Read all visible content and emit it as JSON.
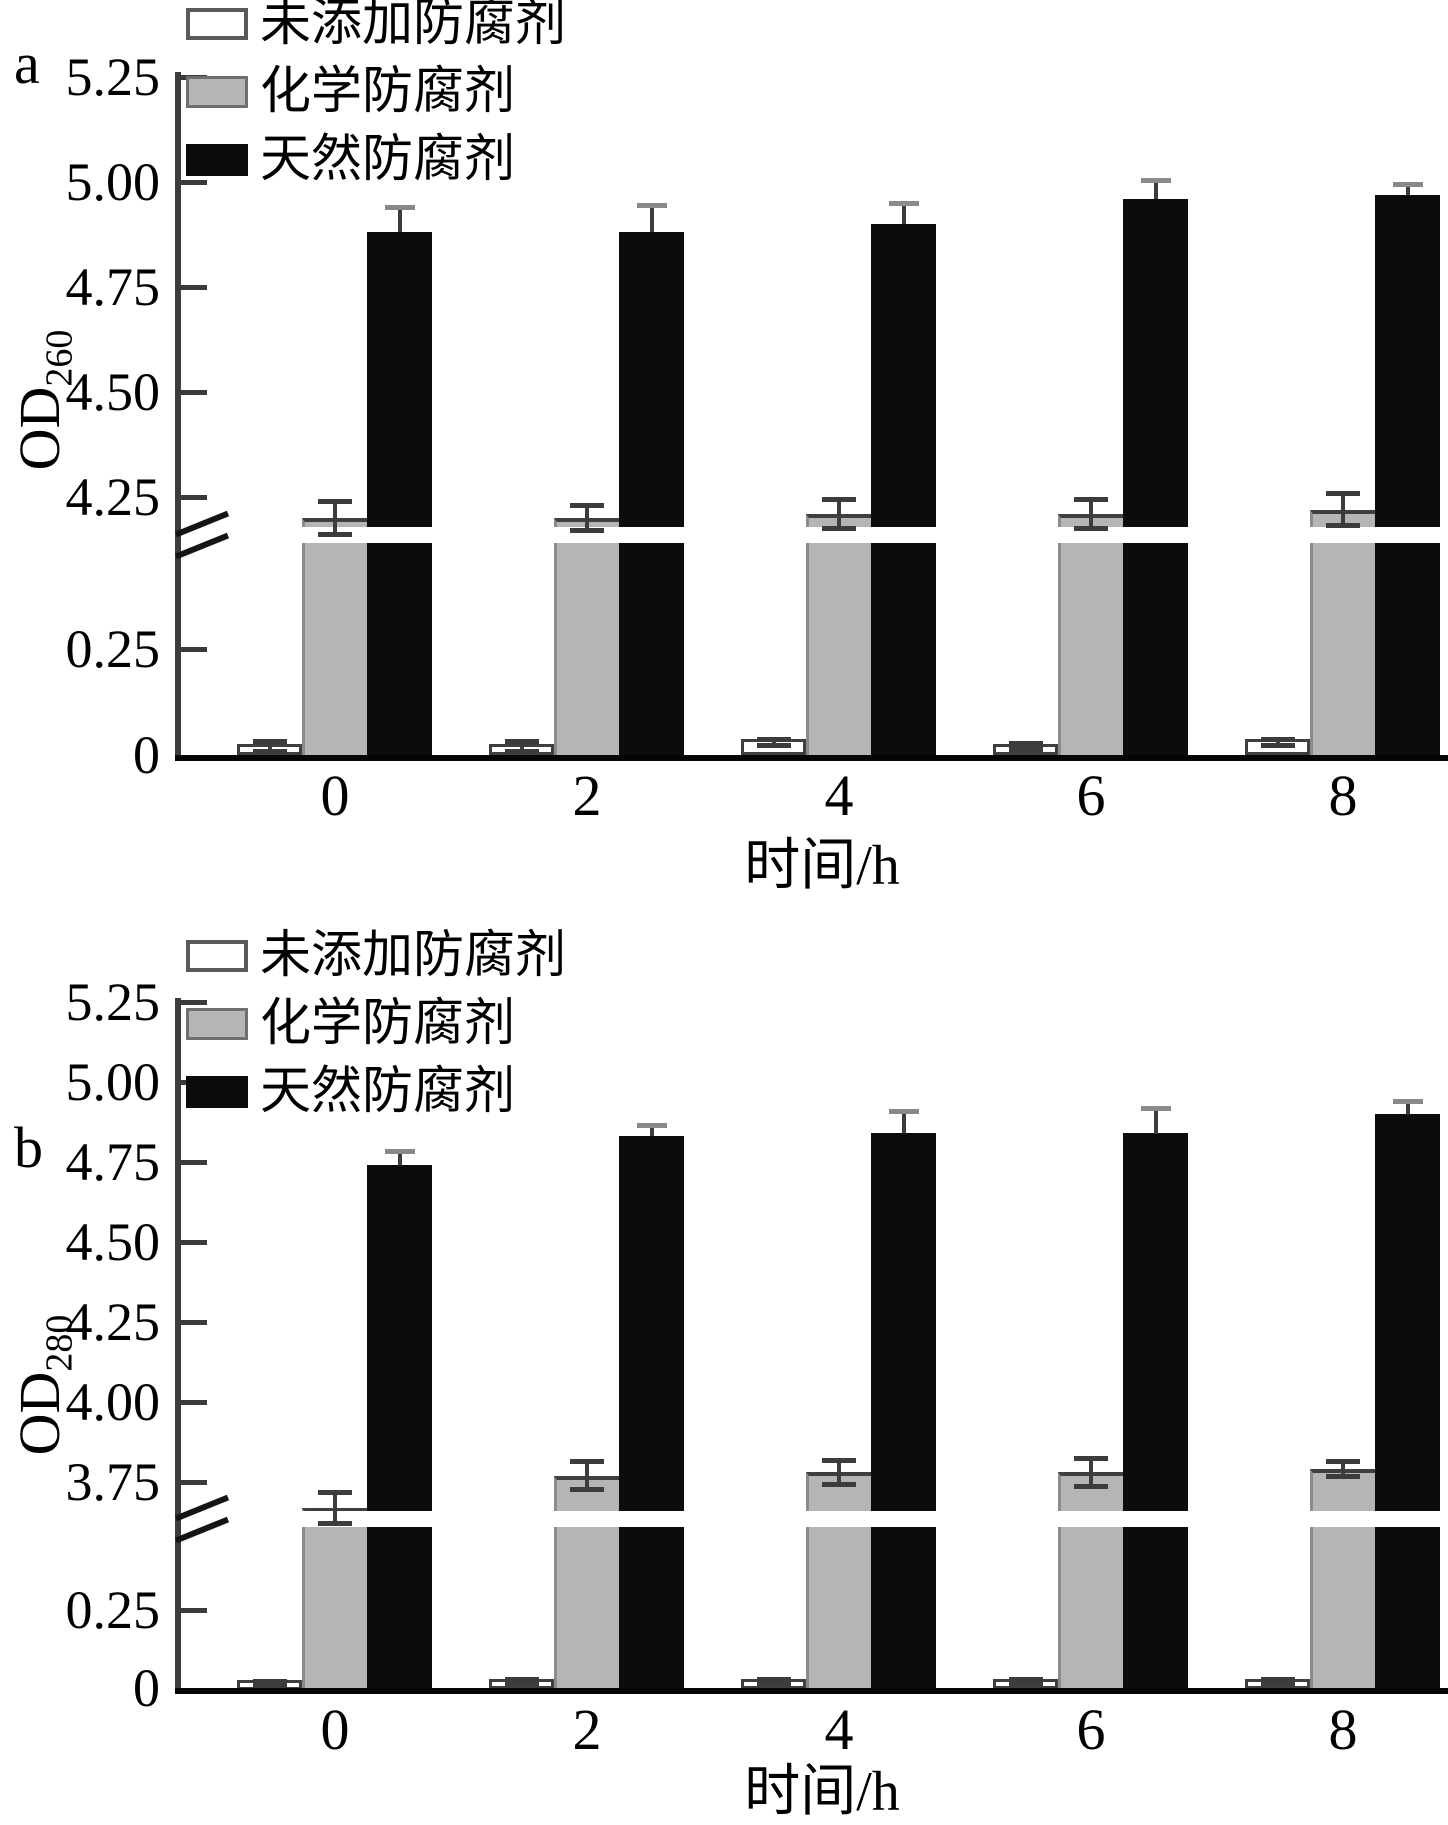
{
  "figure_title": "",
  "chart_data": [
    {
      "id": "a",
      "type": "bar",
      "panel_label": "a",
      "ylabel_base": "OD",
      "ylabel_sub": "260",
      "xlabel": "时间/h",
      "categories": [
        "0",
        "2",
        "4",
        "6",
        "8"
      ],
      "ylim": [
        0,
        5.25
      ],
      "grid": false,
      "legend_position": "top-left-inside",
      "axis_break": {
        "lower_max": 0.45,
        "upper_min": 4.19
      },
      "yticks_lower": [
        "0",
        "0.25"
      ],
      "yticks_upper": [
        "4.25",
        "4.50",
        "4.75",
        "5.00",
        "5.25"
      ],
      "series": [
        {
          "name": "未添加防腐剂",
          "swatch": "white",
          "color": "#ffffff",
          "values": [
            0.02,
            0.02,
            0.03,
            0.02,
            0.03
          ],
          "errors": [
            0.012,
            0.012,
            0.008,
            0.008,
            0.008
          ]
        },
        {
          "name": "化学防腐剂",
          "swatch": "gray",
          "color": "#b5b5b5",
          "values": [
            4.2,
            4.2,
            4.21,
            4.21,
            4.22
          ],
          "errors": [
            0.04,
            0.03,
            0.035,
            0.035,
            0.04
          ]
        },
        {
          "name": "天然防腐剂",
          "swatch": "black",
          "color": "#0c0c0c",
          "values": [
            4.88,
            4.88,
            4.9,
            4.96,
            4.97
          ],
          "errors": [
            0.06,
            0.065,
            0.05,
            0.045,
            0.025
          ]
        }
      ]
    },
    {
      "id": "b",
      "type": "bar",
      "panel_label": "b",
      "ylabel_base": "OD",
      "ylabel_sub": "280",
      "xlabel": "时间/h",
      "categories": [
        "0",
        "2",
        "4",
        "6",
        "8"
      ],
      "ylim": [
        0,
        5.25
      ],
      "grid": false,
      "legend_position": "top-left-inside",
      "axis_break": {
        "lower_max": 0.45,
        "upper_min": 3.68
      },
      "yticks_lower": [
        "0",
        "0.25"
      ],
      "yticks_upper": [
        "3.75",
        "4.00",
        "4.25",
        "4.50",
        "4.75",
        "5.00",
        "5.25"
      ],
      "series": [
        {
          "name": "未添加防腐剂",
          "swatch": "white",
          "color": "#ffffff",
          "values": [
            0.015,
            0.02,
            0.02,
            0.02,
            0.02
          ],
          "errors": [
            0.008,
            0.008,
            0.008,
            0.008,
            0.008
          ]
        },
        {
          "name": "化学防腐剂",
          "swatch": "gray",
          "color": "#b5b5b5",
          "values": [
            3.67,
            3.77,
            3.78,
            3.78,
            3.79
          ],
          "errors": [
            0.05,
            0.045,
            0.04,
            0.045,
            0.025
          ]
        },
        {
          "name": "天然防腐剂",
          "swatch": "black",
          "color": "#0c0c0c",
          "values": [
            4.74,
            4.83,
            4.84,
            4.84,
            4.9
          ],
          "errors": [
            0.045,
            0.035,
            0.07,
            0.08,
            0.04
          ]
        }
      ]
    }
  ],
  "colors": {
    "bar_white": "#ffffff",
    "bar_gray": "#b5b5b5",
    "bar_black": "#0c0c0c",
    "axis": "#3c3c3c",
    "error_bar": "#3c3c3c",
    "error_cap_on_black": "#8a8a8a"
  }
}
